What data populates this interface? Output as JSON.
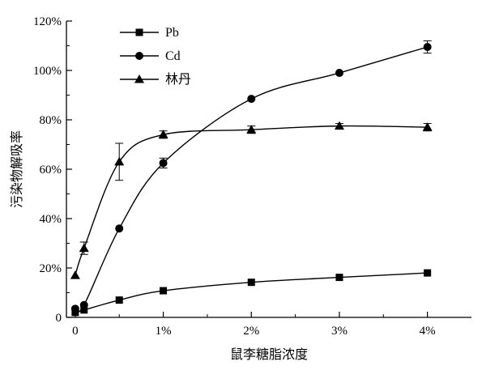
{
  "chart_data": {
    "type": "line",
    "title": "",
    "xlabel": "鼠李糖脂浓度",
    "ylabel": "污染物解吸率",
    "x": [
      0,
      0.1,
      0.5,
      1,
      2,
      3,
      4
    ],
    "xticks": [
      {
        "value": 0,
        "label": "0"
      },
      {
        "value": 1,
        "label": "1%"
      },
      {
        "value": 2,
        "label": "2%"
      },
      {
        "value": 3,
        "label": "3%"
      },
      {
        "value": 4,
        "label": "4%"
      }
    ],
    "xlim": [
      -0.1,
      4.5
    ],
    "yticks": [
      {
        "value": 0,
        "label": "0"
      },
      {
        "value": 20,
        "label": "20%"
      },
      {
        "value": 40,
        "label": "40%"
      },
      {
        "value": 60,
        "label": "60%"
      },
      {
        "value": 80,
        "label": "80%"
      },
      {
        "value": 100,
        "label": "100%"
      },
      {
        "value": 120,
        "label": "120%"
      }
    ],
    "ylim": [
      0,
      120
    ],
    "grid": false,
    "legend_position": "top-left",
    "series": [
      {
        "name": "Pb",
        "marker": "square",
        "values": [
          2,
          3,
          7,
          10.8,
          14.2,
          16.2,
          18
        ],
        "errors": [
          0,
          0,
          0,
          0,
          0,
          0,
          0
        ]
      },
      {
        "name": "Cd",
        "marker": "circle",
        "values": [
          3.5,
          5,
          36,
          62.5,
          88.5,
          99,
          109.5
        ],
        "errors": [
          0,
          0,
          0,
          2,
          0,
          0,
          2.5
        ]
      },
      {
        "name": "林丹",
        "marker": "triangle",
        "values": [
          17,
          28,
          63,
          74,
          76,
          77.5,
          77
        ],
        "errors": [
          0,
          2.5,
          7.5,
          1.5,
          1.5,
          1,
          1.5
        ]
      }
    ]
  }
}
